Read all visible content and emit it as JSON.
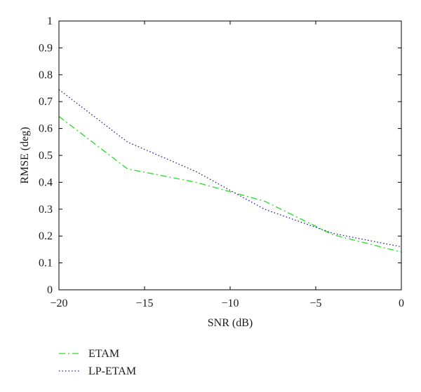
{
  "chart_data": {
    "type": "line",
    "title": "",
    "xlabel": "SNR (dB)",
    "ylabel": "RMSE (deg)",
    "xlim": [
      -20,
      0
    ],
    "ylim": [
      0,
      1
    ],
    "xticks": [
      -20,
      -15,
      -10,
      -5,
      0
    ],
    "xtick_labels": [
      "−20",
      "−15",
      "−10",
      "−5",
      "0"
    ],
    "yticks": [
      0,
      0.1,
      0.2,
      0.3,
      0.4,
      0.5,
      0.6,
      0.7,
      0.8,
      0.9,
      1
    ],
    "ytick_labels": [
      "0",
      "0.1",
      "0.2",
      "0.3",
      "0.4",
      "0.5",
      "0.6",
      "0.7",
      "0.8",
      "0.9",
      "1"
    ],
    "grid": false,
    "legend_position": "below-left",
    "series": [
      {
        "name": "ETAM",
        "color": "#22dd22",
        "line_style": "dash-dot",
        "x": [
          -20,
          -16,
          -12,
          -8,
          -4,
          0
        ],
        "y": [
          0.645,
          0.45,
          0.4,
          0.33,
          0.205,
          0.14
        ]
      },
      {
        "name": "LP-ETAM",
        "color": "#1a1aa0",
        "line_style": "dotted",
        "x": [
          -20,
          -16,
          -12,
          -8,
          -4,
          0
        ],
        "y": [
          0.745,
          0.55,
          0.44,
          0.3,
          0.21,
          0.16
        ]
      }
    ]
  }
}
